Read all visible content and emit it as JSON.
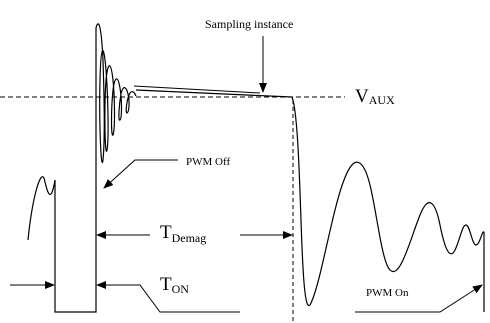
{
  "labels": {
    "sampling": "Sampling instance",
    "vaux_main": "V",
    "vaux_sub": "AUX",
    "pwm_off": "PWM Off",
    "tdemag_main": "T",
    "tdemag_sub": "Demag",
    "ton_main": "T",
    "ton_sub": "ON",
    "pwm_on": "PWM On"
  },
  "colors": {
    "stroke": "#000000",
    "background": "#ffffff"
  }
}
